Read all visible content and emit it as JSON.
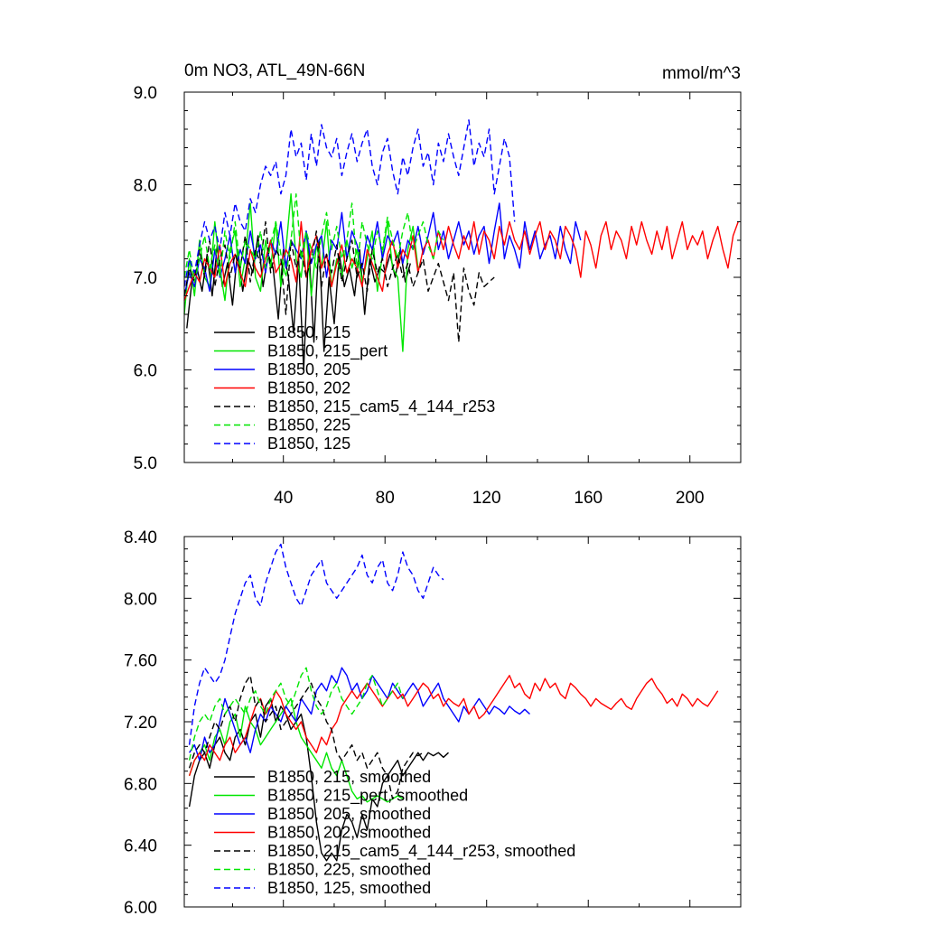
{
  "chart_data": [
    {
      "type": "line",
      "title": "0m NO3, ATL_49N-66N",
      "units": "mmol/m^3",
      "xlim": [
        1,
        220
      ],
      "ylim": [
        5.0,
        9.0
      ],
      "yticks": [
        "5.0",
        "6.0",
        "7.0",
        "8.0",
        "9.0"
      ],
      "xticks": [
        "40",
        "80",
        "120",
        "160",
        "200"
      ],
      "grid": false,
      "legend_position": "bottom-left",
      "series": [
        {
          "name": "B1850, 215",
          "color": "#000000",
          "dash": false,
          "x_start": 2,
          "x_step": 2,
          "values": [
            6.45,
            6.95,
            7.1,
            6.85,
            7.25,
            6.8,
            7.35,
            6.9,
            7.15,
            6.7,
            7.3,
            6.85,
            7.2,
            7.05,
            7.45,
            6.9,
            7.25,
            7.1,
            6.55,
            7.3,
            7.0,
            6.4,
            7.2,
            6.0,
            7.35,
            6.3,
            7.4,
            6.2,
            7.0,
            6.5,
            7.25,
            6.9,
            7.1,
            6.8,
            7.3,
            6.6,
            7.2,
            6.95,
            7.1,
            7.05,
            7.25,
            7.0,
            7.3,
            6.95,
            7.15
          ]
        },
        {
          "name": "B1850, 215_pert",
          "color": "#00e600",
          "dash": false,
          "x_start": 1,
          "x_step": 2,
          "values": [
            6.6,
            7.2,
            6.8,
            7.4,
            7.0,
            6.9,
            7.6,
            7.1,
            6.75,
            7.3,
            7.5,
            6.9,
            7.2,
            7.8,
            7.0,
            6.85,
            7.4,
            7.1,
            7.6,
            6.9,
            7.3,
            7.9,
            7.2,
            7.0,
            7.5,
            6.8,
            7.35,
            7.1,
            7.6,
            6.9,
            7.2,
            7.0,
            7.4,
            7.1,
            7.3,
            6.95,
            7.2,
            7.5,
            6.85,
            7.25,
            7.6,
            7.1,
            7.0,
            6.2,
            7.3,
            7.55,
            7.1
          ]
        },
        {
          "name": "B1850, 205",
          "color": "#0000ff",
          "dash": false,
          "x_start": 1,
          "x_step": 2,
          "values": [
            6.8,
            7.05,
            6.9,
            7.2,
            7.1,
            6.85,
            7.3,
            7.0,
            7.2,
            7.45,
            7.05,
            7.3,
            7.15,
            7.5,
            7.2,
            7.35,
            7.05,
            7.4,
            7.25,
            7.6,
            7.1,
            7.4,
            7.3,
            7.2,
            7.5,
            7.15,
            7.35,
            7.45,
            7.0,
            7.4,
            7.3,
            7.7,
            7.2,
            7.5,
            7.35,
            7.1,
            7.45,
            7.3,
            7.6,
            7.2,
            7.45,
            7.35,
            7.5,
            7.15,
            7.4,
            7.3,
            7.55,
            7.25,
            7.45,
            7.7,
            7.3,
            7.5,
            7.2,
            7.4,
            7.6,
            7.35,
            7.5,
            7.25,
            7.45,
            7.55,
            7.15,
            7.5,
            7.8,
            7.2,
            7.45,
            7.3,
            7.1,
            7.6,
            7.3,
            7.5,
            7.2,
            7.35,
            7.45,
            7.2,
            7.55,
            7.3,
            7.15,
            7.6,
            7.4
          ]
        },
        {
          "name": "B1850, 202",
          "color": "#ff0000",
          "dash": false,
          "x_start": 1,
          "x_step": 2,
          "values": [
            6.75,
            6.9,
            7.05,
            6.95,
            7.2,
            7.1,
            7.0,
            7.35,
            6.9,
            7.15,
            7.25,
            7.05,
            6.9,
            7.3,
            7.1,
            7.0,
            7.2,
            7.4,
            7.05,
            7.15,
            7.3,
            7.2,
            6.95,
            7.6,
            7.0,
            7.3,
            7.45,
            7.1,
            7.25,
            6.9,
            7.15,
            7.35,
            7.05,
            7.2,
            7.1,
            6.9,
            7.3,
            7.15,
            7.0,
            6.85,
            7.25,
            7.4,
            7.1,
            7.3,
            7.2,
            7.45,
            7.05,
            7.3,
            7.4,
            7.2,
            7.5,
            7.3,
            7.55,
            7.35,
            7.2,
            7.45,
            7.3,
            7.6,
            7.25,
            7.5,
            7.4,
            7.2,
            7.55,
            7.35,
            7.6,
            7.4,
            7.3,
            7.5,
            7.25,
            7.45,
            7.6,
            7.3,
            7.5,
            7.4,
            7.2,
            7.55,
            7.45,
            7.3,
            7.0,
            7.5,
            7.35,
            7.1,
            7.45,
            7.6,
            7.3,
            7.5,
            7.4,
            7.2,
            7.55,
            7.35,
            7.6,
            7.4,
            7.25,
            7.5,
            7.3,
            7.55,
            7.2,
            7.4,
            7.6,
            7.3,
            7.45,
            7.35,
            7.5,
            7.2,
            7.4,
            7.55,
            7.3,
            7.1,
            7.45,
            7.6
          ]
        },
        {
          "name": "B1850, 215_cam5_4_144_r253",
          "color": "#000000",
          "dash": true,
          "x_start": 1,
          "x_step": 2,
          "values": [
            6.8,
            7.1,
            6.95,
            7.3,
            7.0,
            7.4,
            6.9,
            7.2,
            7.35,
            7.0,
            7.25,
            7.1,
            7.45,
            6.95,
            7.3,
            7.15,
            7.6,
            7.05,
            7.3,
            7.2,
            6.6,
            7.4,
            7.1,
            7.3,
            7.0,
            7.2,
            7.5,
            6.9,
            7.25,
            7.05,
            7.35,
            6.95,
            7.2,
            7.4,
            7.0,
            7.15,
            6.85,
            7.3,
            7.05,
            7.2,
            6.9,
            7.1,
            7.25,
            7.0,
            7.15,
            6.9,
            7.05,
            7.2,
            6.85,
            7.0,
            7.15,
            6.95,
            6.75,
            7.05,
            6.3,
            7.1,
            6.85,
            6.7,
            7.05,
            6.9,
            6.95,
            7.0
          ]
        },
        {
          "name": "B1850, 225",
          "color": "#00e600",
          "dash": true,
          "x_start": 1,
          "x_step": 2,
          "values": [
            7.0,
            7.3,
            6.95,
            7.2,
            7.45,
            7.1,
            7.35,
            7.0,
            7.5,
            7.2,
            7.6,
            7.1,
            7.4,
            7.3,
            7.2,
            7.5,
            7.1,
            7.35,
            7.6,
            7.25,
            7.0,
            7.4,
            7.9,
            7.2,
            7.5,
            7.3,
            7.1,
            7.45,
            7.7,
            7.3,
            7.55,
            7.2,
            7.4,
            7.8,
            7.1,
            7.6,
            7.35,
            7.2,
            7.5,
            7.3,
            7.65,
            7.4,
            7.2,
            7.5,
            7.7,
            7.3,
            7.45,
            7.6,
            7.35,
            7.2,
            7.5,
            7.4
          ]
        },
        {
          "name": "B1850, 125",
          "color": "#0000ff",
          "dash": true,
          "x_start": 1,
          "x_step": 2,
          "values": [
            6.9,
            7.2,
            7.05,
            7.35,
            7.6,
            7.4,
            7.55,
            7.3,
            7.7,
            7.45,
            7.8,
            7.6,
            7.5,
            7.85,
            7.7,
            8.0,
            8.2,
            8.1,
            8.25,
            7.9,
            8.1,
            8.6,
            8.3,
            8.45,
            8.05,
            8.55,
            8.2,
            8.65,
            8.4,
            8.3,
            8.5,
            8.1,
            8.35,
            8.55,
            8.25,
            8.45,
            8.6,
            8.2,
            8.0,
            8.35,
            8.5,
            8.15,
            7.9,
            8.3,
            8.1,
            8.4,
            8.6,
            8.2,
            8.35,
            8.0,
            8.45,
            8.25,
            8.55,
            8.3,
            8.1,
            8.4,
            8.7,
            8.2,
            8.45,
            8.3,
            8.6,
            7.9,
            8.2,
            8.5,
            8.3,
            7.6
          ]
        }
      ],
      "legend": [
        "B1850, 215",
        "B1850, 215_pert",
        "B1850, 205",
        "B1850, 202",
        "B1850, 215_cam5_4_144_r253",
        "B1850, 225",
        "B1850, 125"
      ]
    },
    {
      "type": "line",
      "title": "",
      "xlim": [
        1,
        220
      ],
      "ylim": [
        6.0,
        8.4
      ],
      "yticks": [
        "6.00",
        "6.40",
        "6.80",
        "7.20",
        "7.60",
        "8.00",
        "8.40"
      ],
      "grid": false,
      "legend_position": "bottom-left",
      "series": [
        {
          "name": "B1850, 215, smoothed",
          "color": "#000000",
          "dash": false,
          "x_start": 3,
          "x_step": 2,
          "values": [
            6.65,
            6.85,
            6.95,
            7.0,
            6.9,
            7.05,
            7.1,
            7.0,
            6.95,
            7.1,
            7.15,
            7.05,
            7.2,
            7.25,
            7.1,
            7.3,
            7.35,
            7.2,
            7.3,
            7.25,
            7.15,
            7.2,
            7.25,
            7.1,
            6.85,
            6.55,
            6.35,
            6.3,
            6.35,
            6.3,
            6.5,
            6.6,
            6.55,
            6.45,
            6.6,
            6.5,
            6.7,
            6.65,
            6.8,
            6.85,
            6.9,
            6.95,
            6.85,
            6.9,
            6.95,
            7.0,
            6.95,
            7.0,
            6.98,
            7.0,
            6.97,
            7.0
          ]
        },
        {
          "name": "B1850, 215_pert, smoothed",
          "color": "#00e600",
          "dash": false,
          "x_start": 3,
          "x_step": 2,
          "values": [
            6.85,
            6.95,
            7.0,
            7.05,
            6.95,
            7.1,
            7.15,
            7.05,
            7.2,
            7.25,
            7.1,
            7.3,
            7.2,
            7.15,
            7.05,
            7.1,
            7.15,
            7.2,
            7.25,
            7.3,
            7.35,
            7.2,
            7.1,
            7.05,
            7.0,
            6.95,
            6.9,
            7.0,
            6.9,
            6.85,
            6.95,
            6.85,
            6.75,
            6.7,
            6.72,
            6.68,
            6.7,
            6.72,
            6.7,
            6.68,
            6.7,
            6.72,
            6.7
          ]
        },
        {
          "name": "B1850, 205, smoothed",
          "color": "#0000ff",
          "dash": false,
          "x_start": 3,
          "x_step": 2,
          "values": [
            7.0,
            7.05,
            6.95,
            7.1,
            7.0,
            7.05,
            7.2,
            7.35,
            7.25,
            7.15,
            7.05,
            7.1,
            7.0,
            7.15,
            7.25,
            7.2,
            7.3,
            7.25,
            7.2,
            7.3,
            7.25,
            7.2,
            7.35,
            7.3,
            7.25,
            7.4,
            7.45,
            7.4,
            7.5,
            7.45,
            7.55,
            7.5,
            7.4,
            7.45,
            7.35,
            7.4,
            7.5,
            7.45,
            7.4,
            7.35,
            7.45,
            7.4,
            7.35,
            7.4,
            7.45,
            7.4,
            7.3,
            7.35,
            7.4,
            7.45,
            7.35,
            7.3,
            7.25,
            7.2,
            7.3,
            7.25,
            7.3,
            7.35,
            7.3,
            7.25,
            7.3,
            7.28,
            7.25,
            7.3,
            7.27,
            7.25,
            7.28,
            7.25
          ]
        },
        {
          "name": "B1850, 202, smoothed",
          "color": "#ff0000",
          "dash": false,
          "x_start": 3,
          "x_step": 2,
          "values": [
            6.85,
            6.95,
            7.0,
            6.95,
            7.05,
            7.0,
            6.95,
            7.05,
            7.1,
            7.0,
            7.05,
            7.1,
            7.2,
            7.3,
            7.35,
            7.25,
            7.3,
            7.4,
            7.35,
            7.25,
            7.2,
            7.15,
            7.2,
            7.1,
            7.05,
            7.0,
            7.1,
            7.05,
            7.15,
            7.2,
            7.3,
            7.35,
            7.4,
            7.35,
            7.4,
            7.45,
            7.4,
            7.35,
            7.3,
            7.35,
            7.4,
            7.35,
            7.38,
            7.3,
            7.35,
            7.4,
            7.45,
            7.42,
            7.35,
            7.38,
            7.3,
            7.35,
            7.32,
            7.3,
            7.35,
            7.25,
            7.3,
            7.22,
            7.25,
            7.3,
            7.35,
            7.4,
            7.45,
            7.5,
            7.42,
            7.45,
            7.38,
            7.35,
            7.45,
            7.4,
            7.48,
            7.42,
            7.45,
            7.38,
            7.35,
            7.45,
            7.42,
            7.38,
            7.35,
            7.3,
            7.35,
            7.32,
            7.3,
            7.28,
            7.32,
            7.35,
            7.3,
            7.28,
            7.35,
            7.4,
            7.45,
            7.48,
            7.42,
            7.38,
            7.32,
            7.35,
            7.3,
            7.38,
            7.35,
            7.3,
            7.35,
            7.32,
            7.3,
            7.35,
            7.4
          ]
        },
        {
          "name": "B1850, 215_cam5_4_144_r253, smoothed",
          "color": "#000000",
          "dash": true,
          "x_start": 3,
          "x_step": 2,
          "values": [
            6.9,
            7.0,
            7.05,
            7.0,
            7.1,
            7.2,
            7.15,
            7.25,
            7.3,
            7.2,
            7.35,
            7.45,
            7.5,
            7.3,
            7.35,
            7.2,
            7.25,
            7.3,
            7.15,
            7.2,
            7.25,
            7.3,
            7.35,
            7.4,
            7.45,
            7.35,
            7.3,
            7.2,
            7.15,
            7.0,
            6.95,
            7.0,
            7.05,
            6.95,
            7.0,
            6.9,
            6.95,
            7.0,
            6.9,
            6.85,
            6.7,
            6.75,
            6.9,
            6.95,
            7.0,
            6.98,
            7.0
          ]
        },
        {
          "name": "B1850, 225, smoothed",
          "color": "#00e600",
          "dash": true,
          "x_start": 3,
          "x_step": 2,
          "values": [
            6.95,
            7.1,
            7.2,
            7.25,
            7.2,
            7.3,
            7.35,
            7.25,
            7.3,
            7.35,
            7.3,
            7.25,
            7.35,
            7.4,
            7.3,
            7.25,
            7.35,
            7.4,
            7.45,
            7.35,
            7.3,
            7.4,
            7.5,
            7.55,
            7.4,
            7.3,
            7.25,
            7.3,
            7.4,
            7.45,
            7.35,
            7.3,
            7.25,
            7.3,
            7.35,
            7.45,
            7.5,
            7.4,
            7.3,
            7.35,
            7.4,
            7.45,
            7.35
          ]
        },
        {
          "name": "B1850, 125, smoothed",
          "color": "#0000ff",
          "dash": true,
          "x_start": 3,
          "x_step": 2,
          "values": [
            7.05,
            7.3,
            7.45,
            7.55,
            7.5,
            7.45,
            7.5,
            7.6,
            7.75,
            7.9,
            8.0,
            8.1,
            8.15,
            8.0,
            7.95,
            8.1,
            8.2,
            8.3,
            8.35,
            8.2,
            8.1,
            8.0,
            7.95,
            8.05,
            8.15,
            8.2,
            8.25,
            8.1,
            8.05,
            8.0,
            8.05,
            8.1,
            8.15,
            8.2,
            8.28,
            8.15,
            8.1,
            8.2,
            8.25,
            8.1,
            8.05,
            8.15,
            8.3,
            8.2,
            8.15,
            8.05,
            8.0,
            8.1,
            8.2,
            8.15,
            8.12
          ]
        }
      ],
      "legend": [
        "B1850, 215, smoothed",
        "B1850, 215_pert, smoothed",
        "B1850, 205, smoothed",
        "B1850, 202, smoothed",
        "B1850, 215_cam5_4_144_r253, smoothed",
        "B1850, 225, smoothed",
        "B1850, 125, smoothed"
      ]
    }
  ]
}
